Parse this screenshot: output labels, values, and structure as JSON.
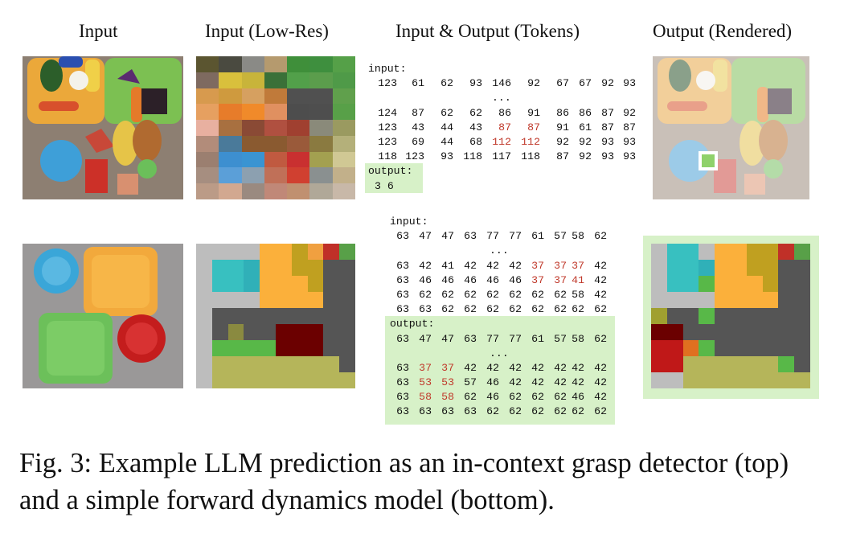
{
  "headers": {
    "input": "Input",
    "lowres": "Input (Low-Res)",
    "tokens": "Input & Output (Tokens)",
    "rendered": "Output (Rendered)"
  },
  "example_top": {
    "input_label": "input:",
    "input_first": [
      "123",
      "61",
      "62",
      "93",
      "146",
      "92",
      "67",
      "67",
      "92",
      "93"
    ],
    "ellipsis": "...",
    "input_rows": [
      [
        "124",
        "87",
        "62",
        "62",
        "86",
        "91",
        "86",
        "86",
        "87",
        "92"
      ],
      [
        "123",
        "43",
        "44",
        "43",
        "87",
        "87",
        "91",
        "61",
        "87",
        "87"
      ],
      [
        "123",
        "69",
        "44",
        "68",
        "112",
        "112",
        "92",
        "92",
        "93",
        "93"
      ],
      [
        "118",
        "123",
        "93",
        "118",
        "117",
        "118",
        "87",
        "92",
        "93",
        "93"
      ]
    ],
    "input_red": [
      [],
      [
        4,
        5
      ],
      [
        4,
        5
      ],
      []
    ],
    "output_label": "output:",
    "output_value": "3 6",
    "lowres_colors": [
      [
        "#5b5530",
        "#4a4a40",
        "#8a8a86",
        "#b59a6e",
        "#3f8f3a",
        "#3e8f3e",
        "#55a048"
      ],
      [
        "#7e6a60",
        "#d9c03c",
        "#c8b43a",
        "#3a7038",
        "#52a04a",
        "#5b9d4c",
        "#4f9a48"
      ],
      [
        "#d79a4e",
        "#cf9a3e",
        "#d6a060",
        "#c07a3a",
        "#505050",
        "#505050",
        "#60a04c"
      ],
      [
        "#e6a060",
        "#e77c2a",
        "#f08a2a",
        "#e09060",
        "#4d4d4d",
        "#4e4e4e",
        "#58a048"
      ],
      [
        "#e8b0a0",
        "#a87040",
        "#8a4a35",
        "#b05040",
        "#a04030",
        "#8a8a7a",
        "#9a9a60"
      ],
      [
        "#b28c7a",
        "#4a7a9a",
        "#8a5a30",
        "#8a5a30",
        "#9a5a3a",
        "#8a7a40",
        "#b4b07a"
      ],
      [
        "#9b7f70",
        "#3d8fd0",
        "#3a94d2",
        "#c05a40",
        "#c93030",
        "#a3a050",
        "#d0c894"
      ],
      [
        "#a68e80",
        "#5b9fd8",
        "#8ca0b0",
        "#c07058",
        "#d04030",
        "#8a9090",
        "#c2b08a"
      ],
      [
        "#bb9b87",
        "#d2a890",
        "#9a8a80",
        "#c08878",
        "#c09070",
        "#b0a898",
        "#c8b8a8"
      ]
    ],
    "input_photo_cells": [
      [
        "#8c7a6a",
        "#e9a336",
        "#2b6e2c",
        "#eec030",
        "#6fb34a",
        "#80bd55",
        "#7ab24e"
      ],
      [
        "#8a7868",
        "#f2b340",
        "#d6522c",
        "#f0d050",
        "#67b040",
        "#c04830",
        "#65a845"
      ],
      [
        "#8c7a6a",
        "#e8a53a",
        "#cc5030",
        "#e0b040",
        "#6cb548",
        "#e07a2c",
        "#332530"
      ],
      [
        "#9b8b7c",
        "#7e6c5e",
        "#7c6c5e",
        "#a07462",
        "#e59030",
        "#c0a040",
        "#b08660"
      ],
      [
        "#7a6b5e",
        "#3d9bd6",
        "#47a5de",
        "#c04830",
        "#e5c148",
        "#d1a344",
        "#6fba57"
      ],
      [
        "#8c7b6c",
        "#3a90d0",
        "#3d96d3",
        "#c8382e",
        "#8e7a6c",
        "#c28656",
        "#a08a7a"
      ],
      [
        "#8e7e70",
        "#7a6b60",
        "#8a7a6c",
        "#d0a080",
        "#9a8a7c",
        "#998a7a",
        "#a08e80"
      ]
    ],
    "rendered_marker": "#8fd16a"
  },
  "example_bottom": {
    "input_label": "input:",
    "input_first": [
      "63",
      "47",
      "47",
      "63",
      "77",
      "77",
      "61",
      "57",
      "58",
      "62"
    ],
    "ellipsis": "...",
    "input_rows": [
      [
        "63",
        "42",
        "41",
        "42",
        "42",
        "42",
        "37",
        "37",
        "37",
        "42"
      ],
      [
        "63",
        "46",
        "46",
        "46",
        "46",
        "46",
        "37",
        "37",
        "41",
        "42"
      ],
      [
        "63",
        "62",
        "62",
        "62",
        "62",
        "62",
        "62",
        "62",
        "58",
        "42"
      ],
      [
        "63",
        "63",
        "62",
        "62",
        "62",
        "62",
        "62",
        "62",
        "62",
        "62"
      ]
    ],
    "input_red": [
      [
        6,
        7,
        8
      ],
      [
        6,
        7,
        8
      ],
      [],
      []
    ],
    "output_label": "output:",
    "output_first": [
      "63",
      "47",
      "47",
      "63",
      "77",
      "77",
      "61",
      "57",
      "58",
      "62"
    ],
    "output_rows": [
      [
        "63",
        "37",
        "37",
        "42",
        "42",
        "42",
        "42",
        "42",
        "42",
        "42"
      ],
      [
        "63",
        "53",
        "53",
        "57",
        "46",
        "42",
        "42",
        "42",
        "42",
        "42"
      ],
      [
        "63",
        "58",
        "58",
        "62",
        "46",
        "62",
        "62",
        "62",
        "46",
        "42"
      ],
      [
        "63",
        "63",
        "63",
        "63",
        "62",
        "62",
        "62",
        "62",
        "62",
        "62"
      ]
    ],
    "output_red": [
      [
        1,
        2
      ],
      [
        1,
        2
      ],
      [
        1,
        2
      ],
      []
    ],
    "lowres_colors": [
      [
        "#bdbdbd",
        "#bdbdbd",
        "#bdbdbd",
        "#bdbdbd",
        "#fbb03b",
        "#fbb03b",
        "#c0a020",
        "#f0a040",
        "#c03028",
        "#58a048"
      ],
      [
        "#bdbdbd",
        "#38c0c0",
        "#38c0c0",
        "#30b0b8",
        "#fbb03b",
        "#fbb03b",
        "#c0a020",
        "#c0a020",
        "#555555",
        "#555555"
      ],
      [
        "#bdbdbd",
        "#38c0c0",
        "#38c0c0",
        "#30b0b8",
        "#fbb03b",
        "#fbb03b",
        "#fbb03b",
        "#c0a020",
        "#555555",
        "#555555"
      ],
      [
        "#bdbdbd",
        "#bdbdbd",
        "#bdbdbd",
        "#bdbdbd",
        "#fbb03b",
        "#fbb03b",
        "#fbb03b",
        "#fbb03b",
        "#555555",
        "#555555"
      ],
      [
        "#bdbdbd",
        "#555555",
        "#555555",
        "#555555",
        "#555555",
        "#555555",
        "#555555",
        "#555555",
        "#555555",
        "#555555"
      ],
      [
        "#bdbdbd",
        "#555555",
        "#8a8a40",
        "#555555",
        "#555555",
        "#6b0000",
        "#6b0000",
        "#6b0000",
        "#555555",
        "#555555"
      ],
      [
        "#bdbdbd",
        "#58b848",
        "#58b848",
        "#58b848",
        "#58b848",
        "#6b0000",
        "#6b0000",
        "#6b0000",
        "#555555",
        "#555555"
      ],
      [
        "#bdbdbd",
        "#b5b55a",
        "#b5b55a",
        "#b5b55a",
        "#b5b55a",
        "#b5b55a",
        "#b5b55a",
        "#b5b55a",
        "#b5b55a",
        "#555555"
      ],
      [
        "#bdbdbd",
        "#b5b55a",
        "#b5b55a",
        "#b5b55a",
        "#b5b55a",
        "#b5b55a",
        "#b5b55a",
        "#b5b55a",
        "#b5b55a",
        "#b5b55a"
      ]
    ],
    "rendered_colors": [
      [
        "#bdbdbd",
        "#38c0c0",
        "#38c0c0",
        "#bdbdbd",
        "#fbb03b",
        "#fbb03b",
        "#c0a020",
        "#c0a020",
        "#c03028",
        "#58a048"
      ],
      [
        "#bdbdbd",
        "#38c0c0",
        "#38c0c0",
        "#30b0b8",
        "#fbb03b",
        "#fbb03b",
        "#c0a020",
        "#c0a020",
        "#555555",
        "#555555"
      ],
      [
        "#bdbdbd",
        "#38c0c0",
        "#38c0c0",
        "#58b848",
        "#fbb03b",
        "#fbb03b",
        "#fbb03b",
        "#c0a020",
        "#555555",
        "#555555"
      ],
      [
        "#bdbdbd",
        "#bdbdbd",
        "#bdbdbd",
        "#bdbdbd",
        "#fbb03b",
        "#fbb03b",
        "#fbb03b",
        "#fbb03b",
        "#555555",
        "#555555"
      ],
      [
        "#a0a030",
        "#555555",
        "#555555",
        "#58b848",
        "#555555",
        "#555555",
        "#555555",
        "#555555",
        "#555555",
        "#555555"
      ],
      [
        "#6b0000",
        "#6b0000",
        "#555555",
        "#555555",
        "#555555",
        "#555555",
        "#555555",
        "#555555",
        "#555555",
        "#555555"
      ],
      [
        "#c01818",
        "#c01818",
        "#e07020",
        "#58b848",
        "#555555",
        "#555555",
        "#555555",
        "#555555",
        "#555555",
        "#555555"
      ],
      [
        "#c01818",
        "#c01818",
        "#b5b55a",
        "#b5b55a",
        "#b5b55a",
        "#b5b55a",
        "#b5b55a",
        "#b5b55a",
        "#58b848",
        "#555555"
      ],
      [
        "#bdbdbd",
        "#bdbdbd",
        "#b5b55a",
        "#b5b55a",
        "#b5b55a",
        "#b5b55a",
        "#b5b55a",
        "#b5b55a",
        "#b5b55a",
        "#b5b55a"
      ]
    ]
  },
  "caption": "Fig. 3: Example LLM prediction as an in-context grasp detector (top) and a simple forward dynamics model (bottom)."
}
